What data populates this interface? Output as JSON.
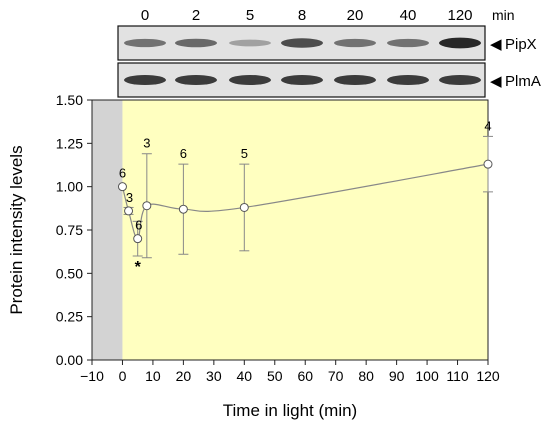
{
  "blot": {
    "time_points": [
      "0",
      "2",
      "5",
      "8",
      "20",
      "40",
      "120"
    ],
    "time_unit": "min",
    "rows": [
      {
        "label": "PipX",
        "arrow": "◀",
        "band_intensity": [
          0.55,
          0.6,
          0.3,
          0.75,
          0.55,
          0.55,
          0.95
        ]
      },
      {
        "label": "PlmA",
        "arrow": "◀",
        "band_intensity": [
          0.85,
          0.85,
          0.85,
          0.85,
          0.85,
          0.85,
          0.85
        ]
      }
    ]
  },
  "chart_data": {
    "type": "scatter",
    "xlabel": "Time in light (min)",
    "ylabel": "Protein intensity levels",
    "xlim": [
      -10,
      120
    ],
    "ylim": [
      0,
      1.5
    ],
    "xticks": [
      "−10",
      "0",
      "10",
      "20",
      "30",
      "40",
      "50",
      "60",
      "70",
      "80",
      "90",
      "100",
      "110",
      "120"
    ],
    "yticks": [
      "0.00",
      "0.25",
      "0.50",
      "0.75",
      "1.00",
      "1.25",
      "1.50"
    ],
    "dark_period": [
      -10,
      0
    ],
    "light_period": [
      0,
      120
    ],
    "colors": {
      "dark": "#d3d3d3",
      "light": "#ffffc0",
      "line": "#888888",
      "marker_fill": "#ffffff"
    },
    "points": [
      {
        "x": 0,
        "y": 1.0,
        "err": 0,
        "n": "6",
        "sig": ""
      },
      {
        "x": 2,
        "y": 0.86,
        "err": 0.02,
        "n": "3",
        "sig": ""
      },
      {
        "x": 5,
        "y": 0.7,
        "err": 0.1,
        "n": "6",
        "sig": "*"
      },
      {
        "x": 8,
        "y": 0.89,
        "err": 0.3,
        "n": "3",
        "sig": ""
      },
      {
        "x": 20,
        "y": 0.87,
        "err": 0.26,
        "n": "6",
        "sig": ""
      },
      {
        "x": 40,
        "y": 0.88,
        "err": 0.25,
        "n": "5",
        "sig": ""
      },
      {
        "x": 120,
        "y": 1.13,
        "err": 0.16,
        "n": "4",
        "sig": ""
      }
    ]
  }
}
